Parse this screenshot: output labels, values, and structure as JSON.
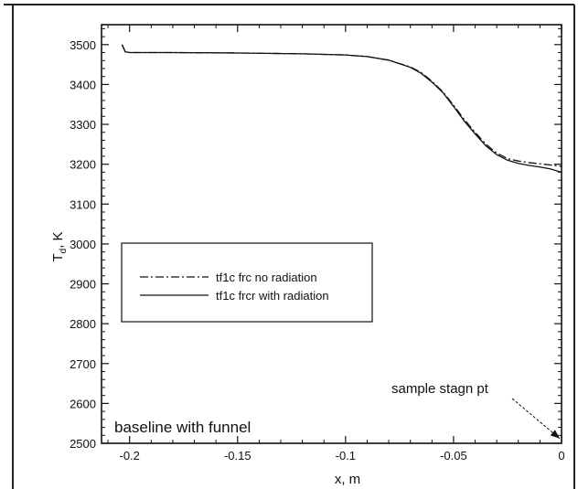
{
  "chart_data": {
    "type": "line",
    "title": "",
    "xlabel": "x, m",
    "ylabel_main": "T",
    "ylabel_sub": "d",
    "ylabel_unit": ", K",
    "xlim": [
      -0.213,
      0.0
    ],
    "ylim": [
      2500,
      3550
    ],
    "x_ticks": [
      -0.2,
      -0.15,
      -0.1,
      -0.05,
      0
    ],
    "x_tick_labels": [
      "-0.2",
      "-0.15",
      "-0.1",
      "-0.05",
      "0"
    ],
    "y_ticks": [
      2500,
      2600,
      2700,
      2800,
      2900,
      3000,
      3100,
      3200,
      3300,
      3400,
      3500
    ],
    "y_tick_labels": [
      "2500",
      "2600",
      "2700",
      "2800",
      "2900",
      "3000",
      "3100",
      "3200",
      "3300",
      "3400",
      "3500"
    ],
    "grid": false,
    "legend_position": "center-left",
    "series": [
      {
        "name": "tf1c frc no radiation",
        "style": "dash-dot",
        "x": [
          -0.2035,
          -0.202,
          -0.2,
          -0.18,
          -0.15,
          -0.12,
          -0.1,
          -0.09,
          -0.08,
          -0.07,
          -0.065,
          -0.06,
          -0.055,
          -0.05,
          -0.045,
          -0.04,
          -0.035,
          -0.03,
          -0.025,
          -0.02,
          -0.015,
          -0.01,
          -0.005,
          -0.002,
          0.0
        ],
        "y": [
          3500,
          3482,
          3480,
          3480,
          3479,
          3477,
          3474,
          3470,
          3461,
          3444,
          3430,
          3408,
          3382,
          3348,
          3312,
          3280,
          3250,
          3228,
          3214,
          3208,
          3204,
          3201,
          3198,
          3196,
          3195
        ]
      },
      {
        "name": "tf1c frcr with radiation",
        "style": "solid",
        "x": [
          -0.2035,
          -0.202,
          -0.2,
          -0.18,
          -0.15,
          -0.12,
          -0.1,
          -0.09,
          -0.08,
          -0.07,
          -0.065,
          -0.06,
          -0.055,
          -0.05,
          -0.045,
          -0.04,
          -0.035,
          -0.03,
          -0.025,
          -0.02,
          -0.015,
          -0.01,
          -0.005,
          -0.002,
          0.0
        ],
        "y": [
          3500,
          3482,
          3480,
          3480,
          3479,
          3477,
          3474,
          3470,
          3461,
          3443,
          3428,
          3406,
          3380,
          3345,
          3308,
          3276,
          3246,
          3224,
          3210,
          3202,
          3197,
          3193,
          3188,
          3183,
          3180
        ]
      }
    ],
    "annotations": [
      {
        "text": "sample stagn pt",
        "arrow_to": [
          0.0,
          2512
        ]
      },
      {
        "text": "baseline with funnel"
      }
    ]
  }
}
